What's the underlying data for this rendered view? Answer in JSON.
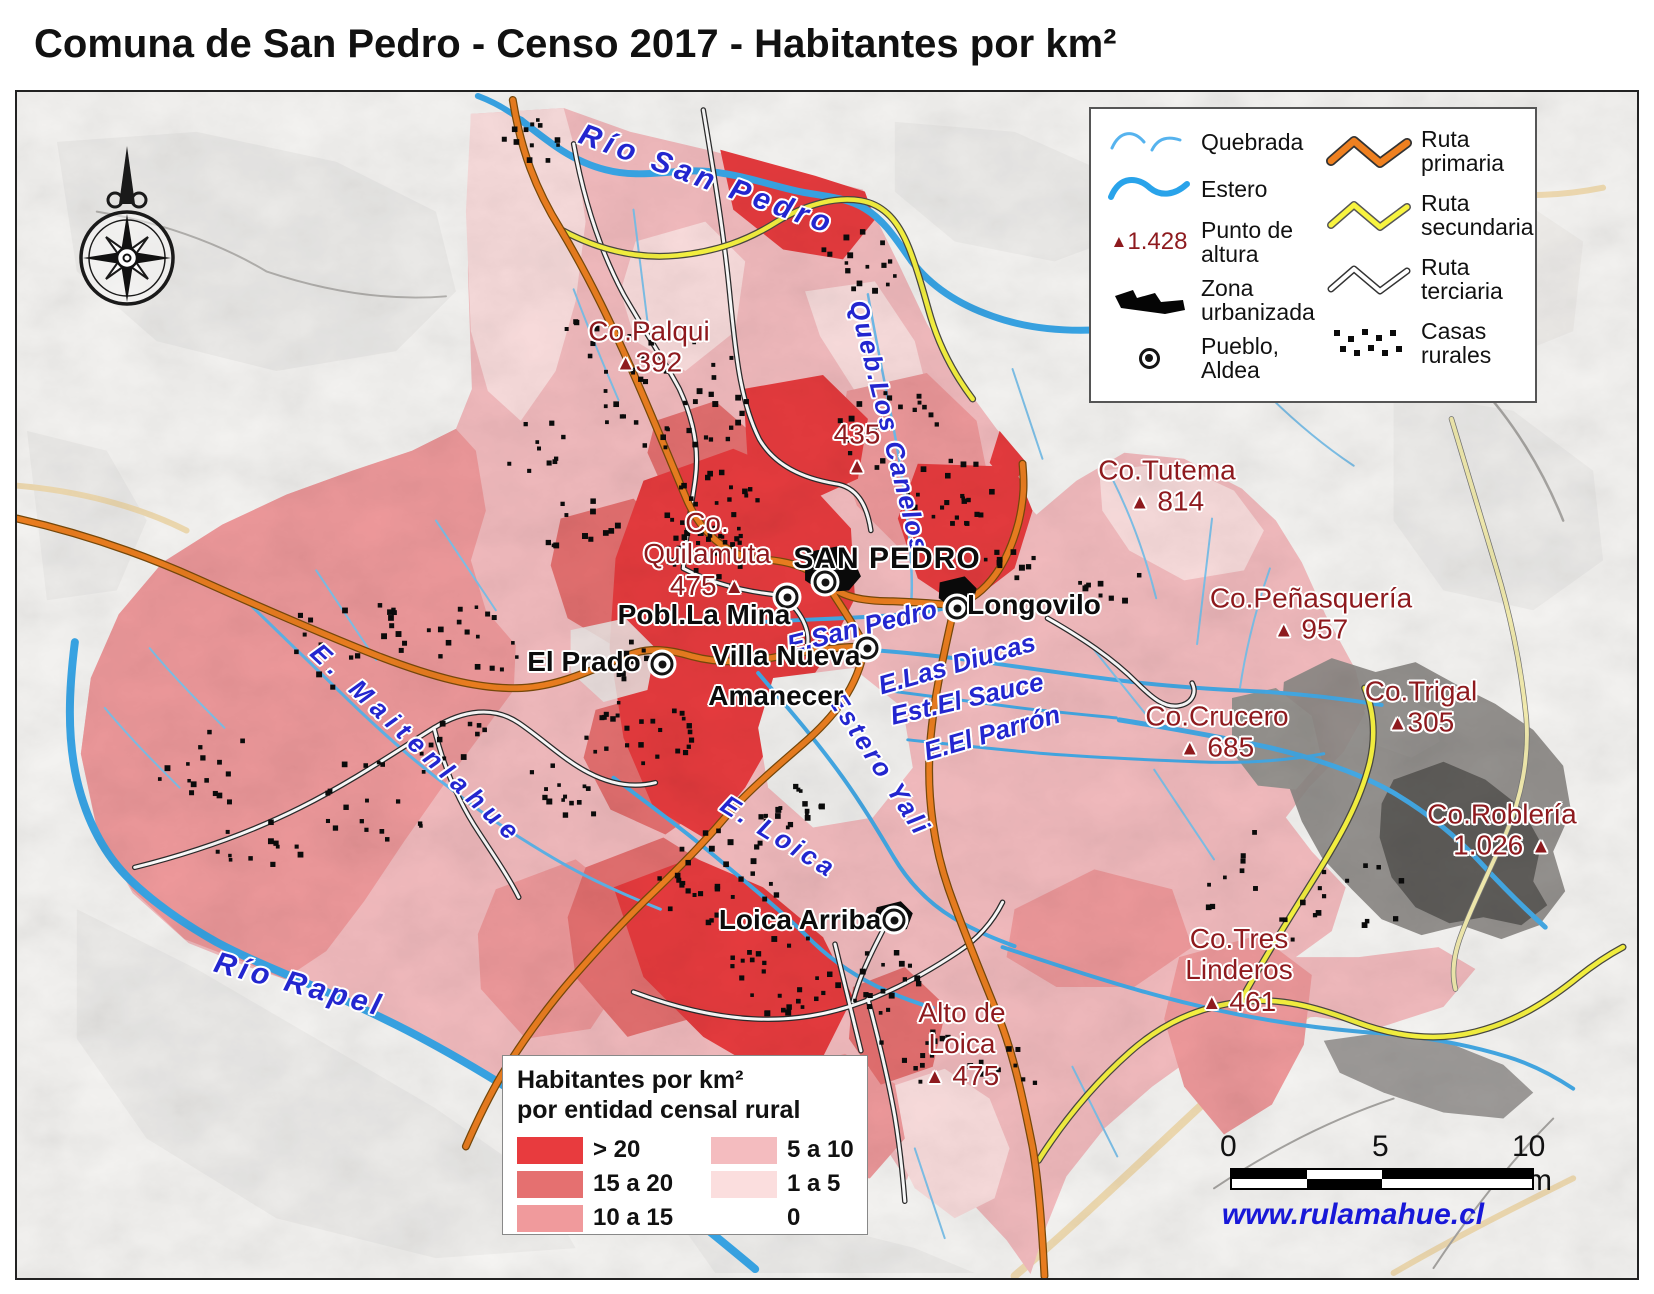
{
  "title": "Comuna de San Pedro - Censo 2017 - Habitantes por km²",
  "map_legend": {
    "quebrada": "Quebrada",
    "estero": "Estero",
    "punto_altura_value": "1.428",
    "punto_altura": "Punto de altura",
    "zona_urbanizada": "Zona urbanizada",
    "pueblo_aldea": "Pueblo, Aldea",
    "ruta_primaria": "Ruta primaria",
    "ruta_secundaria": "Ruta secundaria",
    "ruta_terciaria": "Ruta terciaria",
    "casas_rurales": "Casas rurales",
    "colors": {
      "ruta_primaria": "#ef8020",
      "ruta_secundaria": "#f8f440",
      "ruta_terciaria": "#ffffff",
      "estero": "#29a3ea",
      "quebrada": "#56b3ee"
    }
  },
  "density_legend": {
    "title_line1": "Habitantes por km²",
    "title_line2": "por entidad censal rural",
    "classes": [
      {
        "label": "> 20",
        "color": "#e83b3e"
      },
      {
        "label": "15 a 20",
        "color": "#e57070"
      },
      {
        "label": "10 a 15",
        "color": "#f09a9c"
      },
      {
        "label": "5 a 10",
        "color": "#f4bcbf"
      },
      {
        "label": "1 a 5",
        "color": "#fbdede"
      },
      {
        "label": "0",
        "color": "#ffffff"
      }
    ]
  },
  "scale_bar": {
    "tick_0": "0",
    "tick_5": "5",
    "tick_10": "10 km"
  },
  "credit": "www.rulamahue.cl",
  "labels": {
    "rivers": [
      {
        "text": "Río San Pedro"
      },
      {
        "text": "Queb.Los Canelos"
      },
      {
        "text": "E.San Pedro"
      },
      {
        "text": "E.Las Diucas"
      },
      {
        "text": "Est.El Sauce"
      },
      {
        "text": "E.El Parrón"
      },
      {
        "text": "Estero Yali"
      },
      {
        "text": "E. Loica"
      },
      {
        "text": "E. Maitenlahue"
      },
      {
        "text": "Río Rapel"
      }
    ],
    "towns": [
      {
        "text": "SAN PEDRO"
      },
      {
        "text": "Pobl.La Mina"
      },
      {
        "text": "Villa Nueva"
      },
      {
        "text": "Amanecer"
      },
      {
        "text": "El Prado"
      },
      {
        "text": "Longovilo"
      },
      {
        "text": "Loica Arriba"
      }
    ],
    "peaks": [
      {
        "name": "Co.Palqui",
        "elev": "392"
      },
      {
        "name": "",
        "elev": "435"
      },
      {
        "name": "Co. Quilamuta",
        "elev": "475"
      },
      {
        "name": "Co.Tutema",
        "elev": "814"
      },
      {
        "name": "Co.Peñasquería",
        "elev": "957"
      },
      {
        "name": "Co.Crucero",
        "elev": "685"
      },
      {
        "name": "Co.Trigal",
        "elev": "305"
      },
      {
        "name": "Co.Roblería",
        "elev": "1.026"
      },
      {
        "name": "Co.Tres Linderos",
        "elev": "461"
      },
      {
        "name": "Alto de Loica",
        "elev": "475"
      }
    ]
  }
}
